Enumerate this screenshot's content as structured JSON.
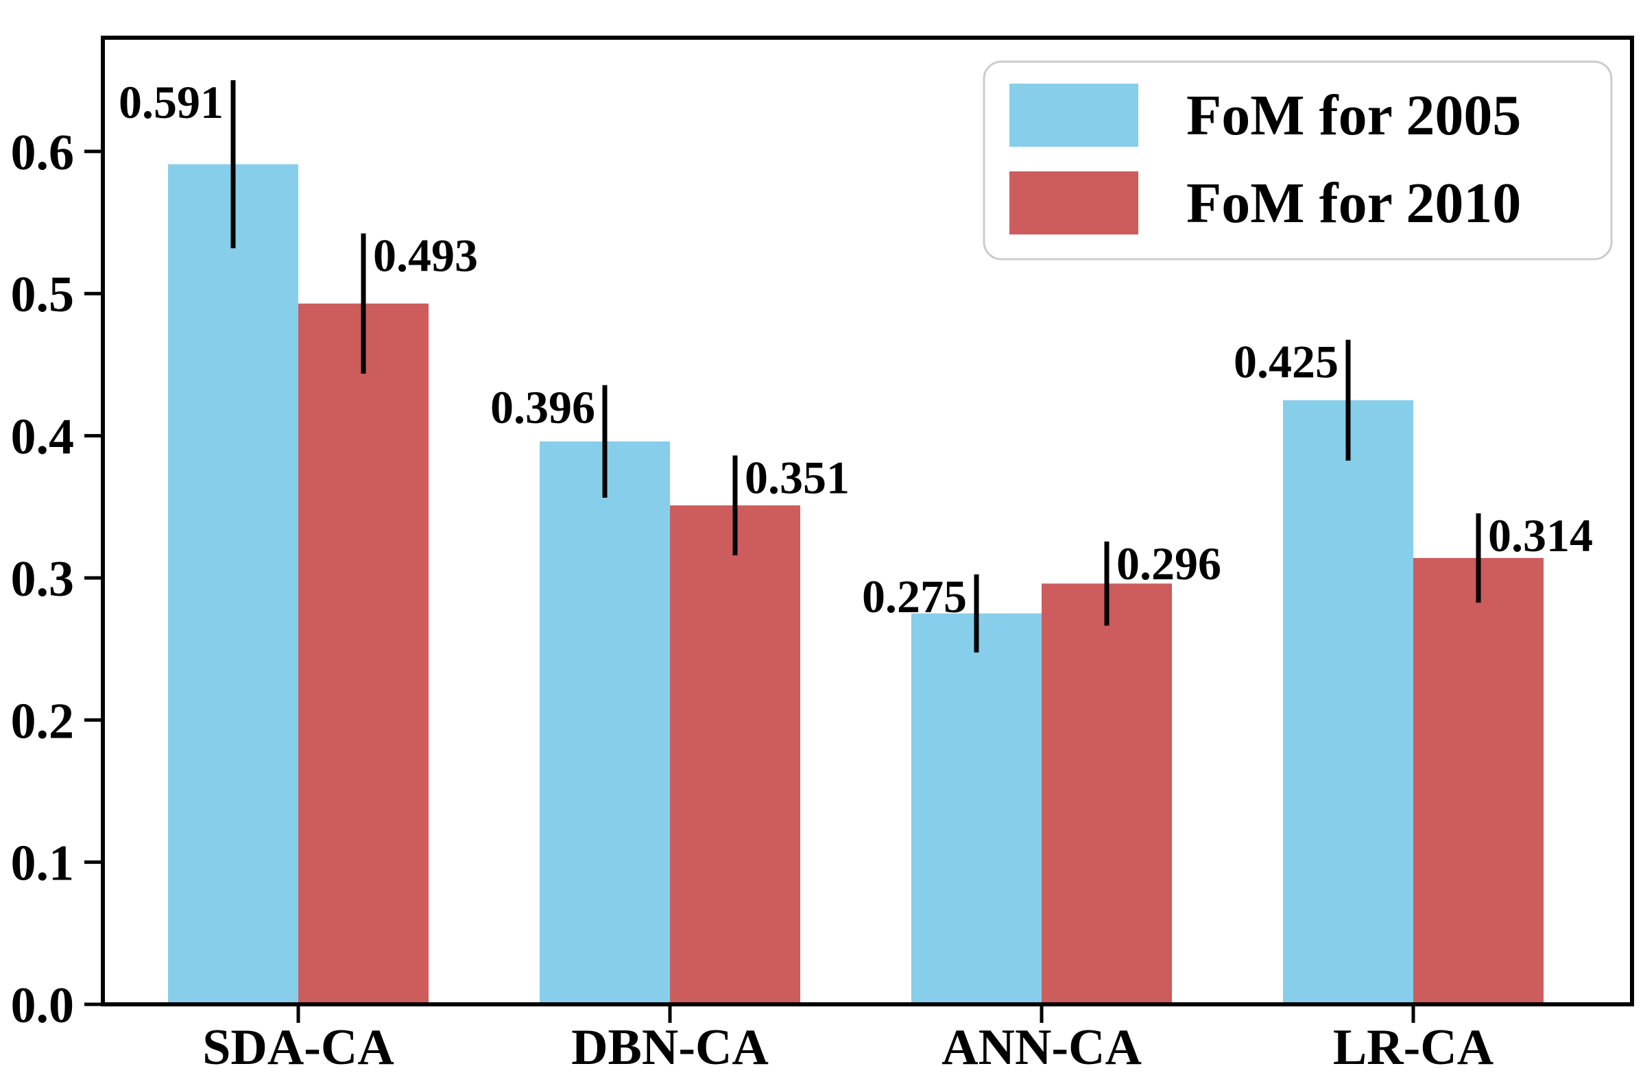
{
  "chart_data": {
    "type": "bar",
    "title": "",
    "xlabel": "",
    "ylabel": "",
    "categories": [
      "SDA-CA",
      "DBN-CA",
      "ANN-CA",
      "LR-CA"
    ],
    "series": [
      {
        "name": "FoM for 2005",
        "color": "#87CEEB",
        "values": [
          0.591,
          0.396,
          0.275,
          0.425
        ],
        "errors": [
          0.0591,
          0.0396,
          0.0275,
          0.0425
        ]
      },
      {
        "name": "FoM for 2010",
        "color": "#CD5C5C",
        "values": [
          0.493,
          0.351,
          0.296,
          0.314
        ],
        "errors": [
          0.0493,
          0.0351,
          0.0296,
          0.0314
        ]
      }
    ],
    "value_labels": [
      [
        "0.591",
        "0.396",
        "0.275",
        "0.425"
      ],
      [
        "0.493",
        "0.351",
        "0.296",
        "0.314"
      ]
    ],
    "yticks": [
      "0.0",
      "0.1",
      "0.2",
      "0.3",
      "0.4",
      "0.5",
      "0.6"
    ],
    "ytick_values": [
      0.0,
      0.1,
      0.2,
      0.3,
      0.4,
      0.5,
      0.6
    ],
    "ylim": [
      0,
      0.68
    ],
    "grid": false,
    "legend_position": "upper right",
    "error_bars": "plus-minus 10 percent, black, no caps",
    "colors": {
      "series_2005": "#87CEEB",
      "series_2010": "#CD5C5C",
      "axis": "#000000",
      "text": "#000000",
      "legend_border": "#cccccc",
      "background": "#ffffff"
    }
  }
}
